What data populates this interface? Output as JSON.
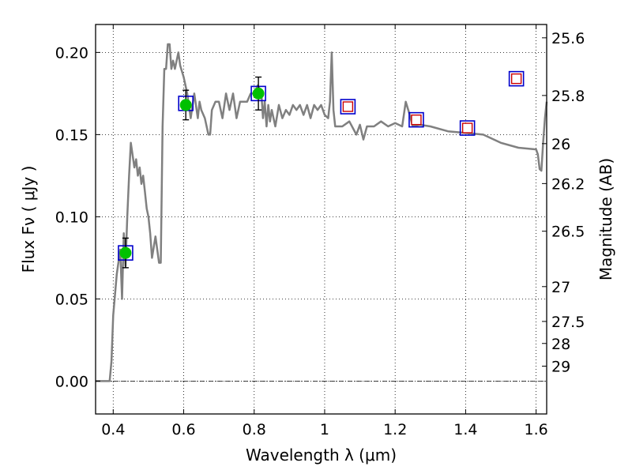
{
  "chart_data": {
    "type": "line",
    "xlabel": "Wavelength  λ (μm)",
    "ylabel": "Flux  Fν  ( μJy )",
    "y2label": "Magnitude (AB)",
    "xlim": [
      0.35,
      1.63
    ],
    "ylim": [
      -0.02,
      0.217
    ],
    "grid": true,
    "x_ticks": [
      0.4,
      0.6,
      0.8,
      1.0,
      1.2,
      1.4,
      1.6
    ],
    "x_tick_labels": [
      "0.4",
      "0.6",
      "0.8",
      "1",
      "1.2",
      "1.4",
      "1.6"
    ],
    "y_ticks": [
      0.0,
      0.05,
      0.1,
      0.15,
      0.2
    ],
    "y_tick_labels": [
      "0.00",
      "0.05",
      "0.10",
      "0.15",
      "0.20"
    ],
    "mag_ticks": [
      {
        "label": "25.6",
        "flux": 0.2089
      },
      {
        "label": "25.8",
        "flux": 0.1738
      },
      {
        "label": "26",
        "flux": 0.1445
      },
      {
        "label": "26.2",
        "flux": 0.1202
      },
      {
        "label": "26.5",
        "flux": 0.0912
      },
      {
        "label": "27",
        "flux": 0.0575
      },
      {
        "label": "27.5",
        "flux": 0.0363
      },
      {
        "label": "28",
        "flux": 0.0229
      },
      {
        "label": "29",
        "flux": 0.0091
      }
    ],
    "model_spectrum": {
      "color": "#808080",
      "x": [
        0.35,
        0.39,
        0.395,
        0.4,
        0.41,
        0.42,
        0.425,
        0.43,
        0.435,
        0.44,
        0.445,
        0.45,
        0.46,
        0.465,
        0.47,
        0.475,
        0.48,
        0.485,
        0.49,
        0.495,
        0.5,
        0.505,
        0.51,
        0.52,
        0.53,
        0.535,
        0.54,
        0.545,
        0.55,
        0.555,
        0.56,
        0.565,
        0.57,
        0.575,
        0.58,
        0.585,
        0.59,
        0.6,
        0.61,
        0.62,
        0.63,
        0.64,
        0.645,
        0.65,
        0.66,
        0.67,
        0.675,
        0.68,
        0.69,
        0.7,
        0.71,
        0.72,
        0.73,
        0.74,
        0.75,
        0.76,
        0.77,
        0.78,
        0.79,
        0.8,
        0.81,
        0.82,
        0.825,
        0.83,
        0.835,
        0.84,
        0.845,
        0.85,
        0.86,
        0.87,
        0.88,
        0.89,
        0.9,
        0.91,
        0.92,
        0.93,
        0.94,
        0.95,
        0.96,
        0.97,
        0.98,
        0.99,
        1.0,
        1.01,
        1.015,
        1.02,
        1.025,
        1.03,
        1.05,
        1.07,
        1.09,
        1.1,
        1.11,
        1.12,
        1.14,
        1.16,
        1.18,
        1.2,
        1.22,
        1.23,
        1.24,
        1.25,
        1.27,
        1.3,
        1.35,
        1.4,
        1.45,
        1.5,
        1.55,
        1.6,
        1.605,
        1.61,
        1.615,
        1.62,
        1.625,
        1.63
      ],
      "y": [
        0.0,
        0.0,
        0.012,
        0.04,
        0.065,
        0.08,
        0.05,
        0.09,
        0.07,
        0.1,
        0.125,
        0.145,
        0.13,
        0.135,
        0.125,
        0.13,
        0.12,
        0.125,
        0.115,
        0.105,
        0.1,
        0.09,
        0.075,
        0.088,
        0.072,
        0.072,
        0.155,
        0.19,
        0.19,
        0.205,
        0.205,
        0.19,
        0.195,
        0.19,
        0.195,
        0.2,
        0.192,
        0.185,
        0.175,
        0.16,
        0.175,
        0.16,
        0.17,
        0.165,
        0.16,
        0.15,
        0.15,
        0.165,
        0.17,
        0.17,
        0.16,
        0.175,
        0.165,
        0.175,
        0.16,
        0.17,
        0.17,
        0.17,
        0.175,
        0.175,
        0.18,
        0.176,
        0.16,
        0.17,
        0.155,
        0.168,
        0.158,
        0.165,
        0.155,
        0.168,
        0.16,
        0.165,
        0.162,
        0.168,
        0.165,
        0.168,
        0.162,
        0.168,
        0.16,
        0.168,
        0.165,
        0.168,
        0.162,
        0.16,
        0.17,
        0.2,
        0.165,
        0.155,
        0.155,
        0.158,
        0.15,
        0.156,
        0.147,
        0.155,
        0.155,
        0.158,
        0.155,
        0.157,
        0.155,
        0.17,
        0.163,
        0.155,
        0.156,
        0.155,
        0.152,
        0.151,
        0.15,
        0.145,
        0.142,
        0.141,
        0.138,
        0.129,
        0.128,
        0.145,
        0.16,
        0.17
      ]
    },
    "observed_points": {
      "marker_color": "#00c000",
      "x": [
        0.435,
        0.606,
        0.812
      ],
      "y": [
        0.078,
        0.168,
        0.175
      ],
      "yerr": [
        0.009,
        0.009,
        0.01
      ]
    },
    "model_photometry": {
      "color": "#0000cc",
      "x": [
        0.435,
        0.606,
        0.812,
        1.066,
        1.26,
        1.405,
        1.544
      ],
      "y": [
        0.078,
        0.169,
        0.175,
        0.167,
        0.159,
        0.154,
        0.184
      ]
    },
    "upper_points": {
      "color": "#cc0000",
      "x": [
        1.066,
        1.26,
        1.405,
        1.544
      ],
      "y": [
        0.167,
        0.159,
        0.154,
        0.184
      ]
    }
  }
}
